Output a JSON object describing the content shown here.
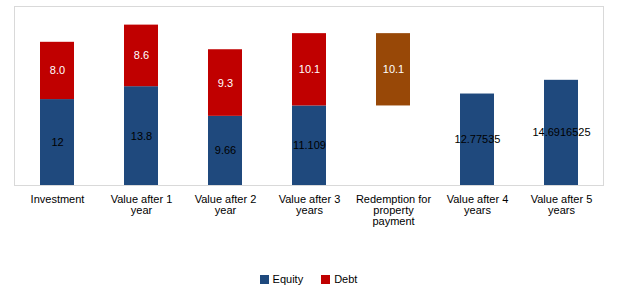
{
  "chart_data": {
    "type": "bar",
    "stacked": true,
    "data_labels": true,
    "tick_labels": "x",
    "grid": false,
    "legend": "bottom",
    "categories": [
      "Investment",
      "Value after 1 year",
      "Value after 2 year",
      "Value after 3 years",
      "Redemption for property payment",
      "Value after 4 years",
      "Value after 5 years"
    ],
    "series": [
      {
        "name": "Equity",
        "color": "#1f497d",
        "values": [
          12,
          13.8,
          9.66,
          11.109,
          null,
          12.77535,
          14.6916525
        ]
      },
      {
        "name": "Debt",
        "color": "#c00000",
        "colors": [
          "#c00000",
          "#c00000",
          "#c00000",
          "#c00000",
          "#984807",
          "#c00000",
          "#c00000"
        ],
        "values": [
          8.0,
          8.6,
          9.3,
          10.1,
          10.1,
          null,
          null
        ],
        "value_labels": [
          "8.0",
          "8.6",
          "9.3",
          "10.1",
          "10.1",
          null,
          null
        ],
        "base": [
          null,
          null,
          null,
          null,
          11.109,
          null,
          null
        ]
      }
    ],
    "ylim": [
      0,
      25
    ],
    "yticks": []
  }
}
